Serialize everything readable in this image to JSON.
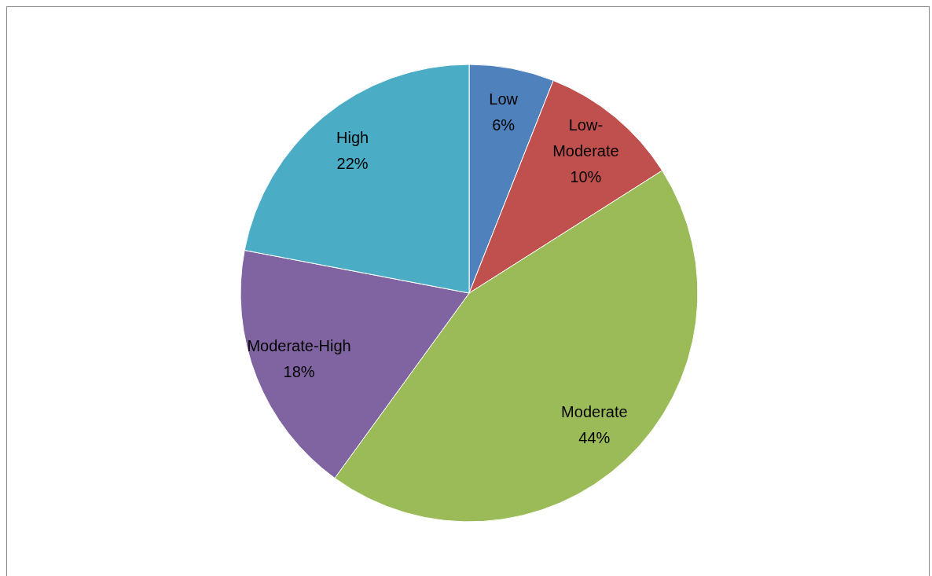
{
  "chart_data": {
    "type": "pie",
    "categories": [
      "Low",
      "Low-Moderate",
      "Moderate",
      "Moderate-High",
      "High"
    ],
    "values": [
      6,
      10,
      44,
      18,
      22
    ],
    "colors": [
      "#4f81bd",
      "#c0504d",
      "#9bbb59",
      "#8064a2",
      "#4bacc6"
    ],
    "value_labels": [
      "6%",
      "10%",
      "44%",
      "18%",
      "22%"
    ],
    "legend": false
  }
}
